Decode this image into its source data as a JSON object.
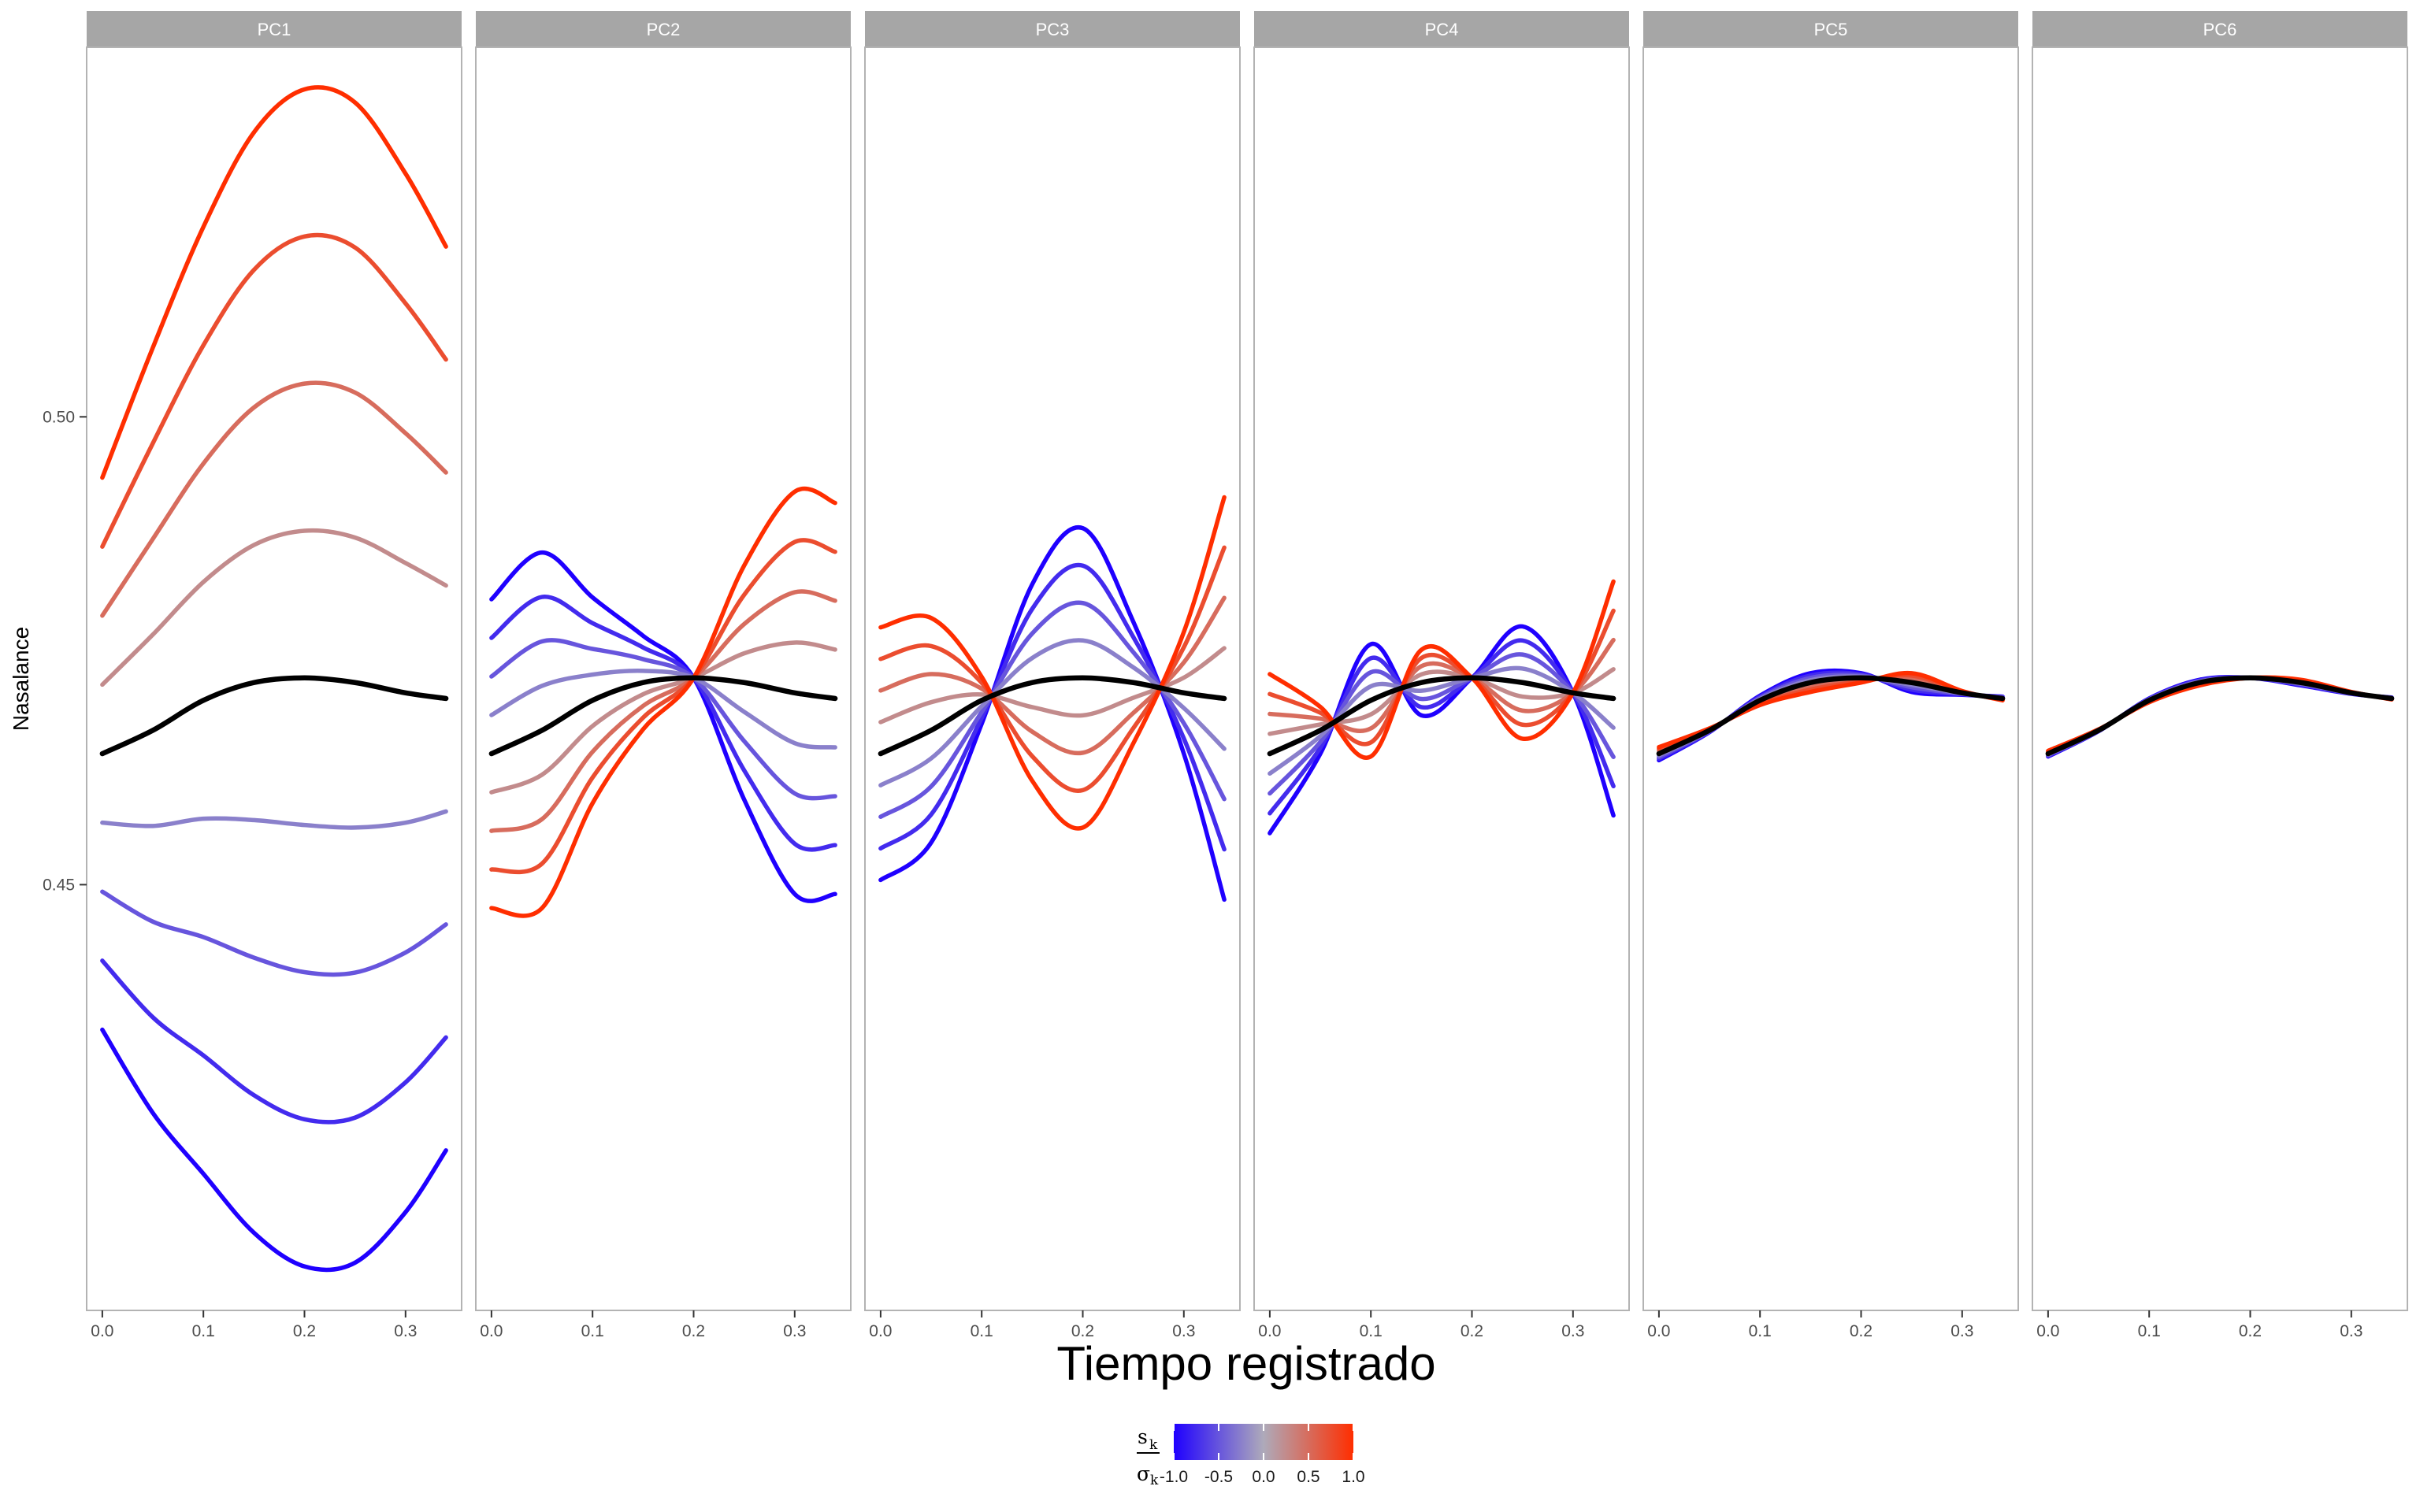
{
  "chart_data": {
    "type": "line",
    "xlabel": "Tiempo registrado",
    "ylabel": "Nasalance",
    "xlim": [
      -0.0155,
      0.3555
    ],
    "ylim": [
      0.4045,
      0.5395
    ],
    "x_ticks": [
      0.0,
      0.1,
      0.2,
      0.3
    ],
    "x_tick_labels": [
      "0.0",
      "0.1",
      "0.2",
      "0.3"
    ],
    "y_ticks": [
      0.45,
      0.5
    ],
    "y_tick_labels": [
      "0.45",
      "0.50"
    ],
    "grid": false,
    "panels": [
      "PC1",
      "PC2",
      "PC3",
      "PC4",
      "PC5",
      "PC6"
    ],
    "x": [
      0.0,
      0.05,
      0.1,
      0.15,
      0.2,
      0.25,
      0.3,
      0.34
    ],
    "mean": [
      0.464,
      0.4665,
      0.4697,
      0.4716,
      0.4721,
      0.4716,
      0.4705,
      0.4699
    ],
    "levels": [
      -1.0,
      -0.75,
      -0.5,
      -0.25,
      0.25,
      0.5,
      0.75,
      1.0
    ],
    "components": {
      "PC1": [
        0.0295,
        0.0409,
        0.0506,
        0.0588,
        0.0629,
        0.062,
        0.0555,
        0.0483
      ],
      "PC2": [
        -0.0165,
        -0.019,
        -0.011,
        -0.005,
        0.0,
        0.0125,
        0.0215,
        0.0209
      ],
      "PC3": [
        0.0135,
        0.012,
        0.0025,
        -0.0105,
        -0.016,
        -0.0065,
        0.0065,
        0.0215
      ],
      "PC4": [
        0.0085,
        0.0025,
        -0.006,
        0.0035,
        0.0,
        -0.006,
        0.0,
        0.0125
      ],
      "PC5": [
        0.0007,
        0.0002,
        -0.0005,
        -0.001,
        -0.0005,
        0.001,
        0.0002,
        -0.0002
      ],
      "PC6": [
        0.0003,
        0.0001,
        -0.0002,
        -0.0003,
        0.0,
        0.0003,
        0.0001,
        -0.0001
      ]
    },
    "curve_pairs": {
      "PC1": [
        {
          "level": -1.0,
          "y": [
            0.4935,
            0.5074,
            0.5203,
            0.5304,
            0.535,
            0.5336,
            0.526,
            0.5182
          ]
        },
        {
          "level": -0.75,
          "y": [
            0.4861,
            0.4972,
            0.5077,
            0.5157,
            0.5193,
            0.5181,
            0.5121,
            0.5061
          ]
        },
        {
          "level": -0.5,
          "y": [
            0.4788,
            0.487,
            0.495,
            0.501,
            0.5036,
            0.5026,
            0.4983,
            0.4941
          ]
        },
        {
          "level": -0.25,
          "y": [
            0.4714,
            0.4767,
            0.4824,
            0.4863,
            0.4878,
            0.4871,
            0.4844,
            0.482
          ]
        },
        {
          "level": 0.25,
          "y": [
            0.4566,
            0.4563,
            0.4571,
            0.4569,
            0.4564,
            0.4561,
            0.4566,
            0.4578
          ]
        },
        {
          "level": 0.5,
          "y": [
            0.4493,
            0.4461,
            0.4444,
            0.4422,
            0.4407,
            0.4406,
            0.4428,
            0.4458
          ]
        },
        {
          "level": 0.75,
          "y": [
            0.4419,
            0.4358,
            0.4318,
            0.4275,
            0.4249,
            0.4251,
            0.4289,
            0.4337
          ]
        },
        {
          "level": 1.0,
          "y": [
            0.4345,
            0.4256,
            0.4191,
            0.4128,
            0.4092,
            0.4096,
            0.415,
            0.4216
          ]
        }
      ]
    },
    "legend": {
      "title": "s_k / σ_k",
      "title_numerator": "s",
      "title_denominator": "σ",
      "title_subscript": "k",
      "type": "colorbar",
      "range": [
        -1.0,
        1.0
      ],
      "ticks": [
        "-1.0",
        "-0.5",
        "0.0",
        "0.5",
        "1.0"
      ],
      "colors": [
        "#1f00ff",
        "#aeaaba",
        "#ff2e00"
      ],
      "mean_color": "#000000",
      "placement": "bottom"
    }
  }
}
